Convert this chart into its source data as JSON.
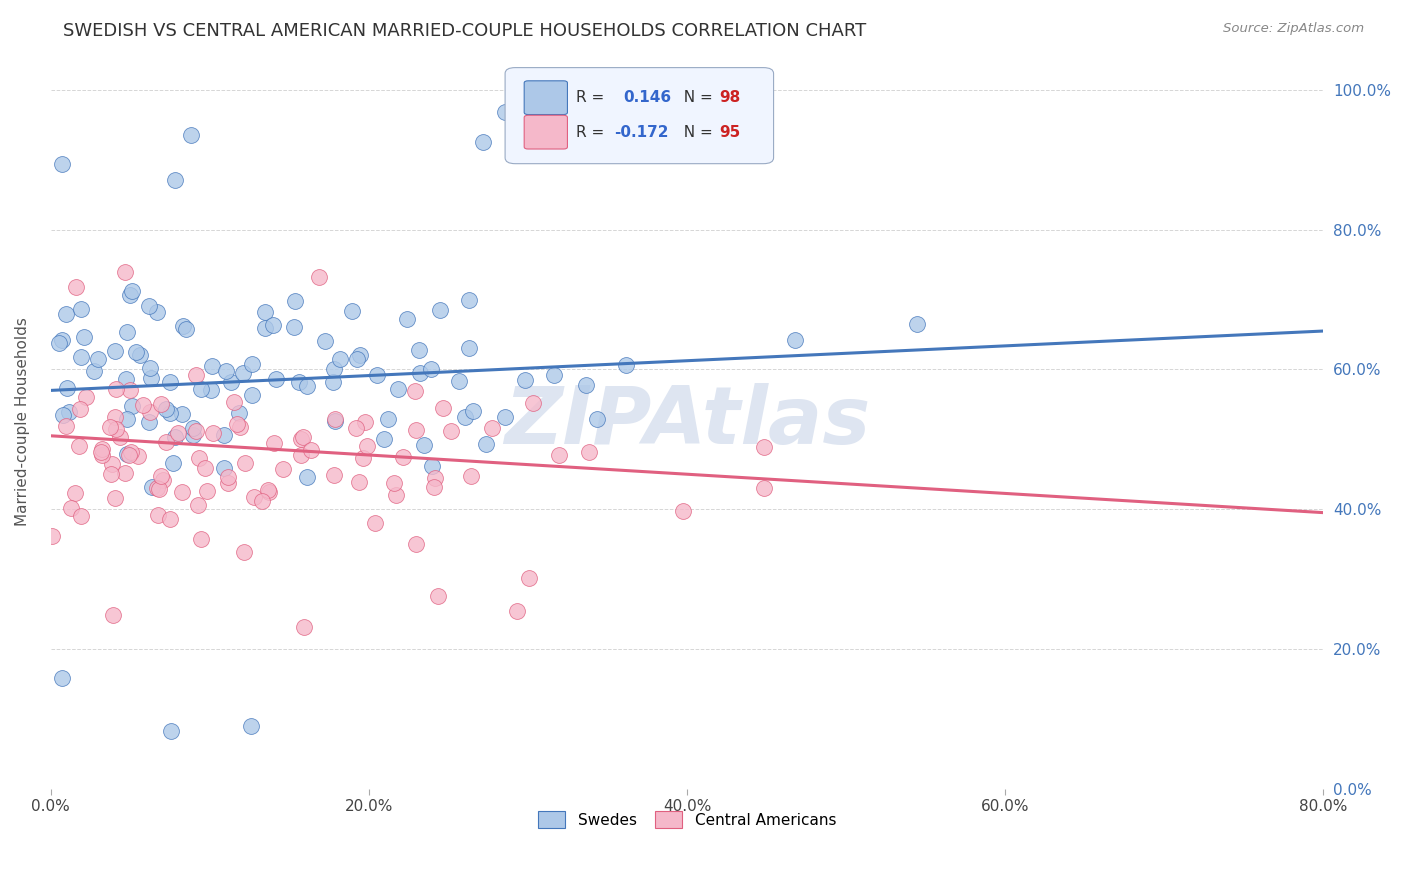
{
  "title": "SWEDISH VS CENTRAL AMERICAN MARRIED-COUPLE HOUSEHOLDS CORRELATION CHART",
  "source": "Source: ZipAtlas.com",
  "ylabel": "Married-couple Households",
  "xlabel_ticks": [
    "0.0%",
    "20.0%",
    "40.0%",
    "60.0%",
    "80.0%"
  ],
  "ylabel_ticks": [
    "0.0%",
    "20.0%",
    "40.0%",
    "60.0%",
    "80.0%",
    "100.0%"
  ],
  "xlim": [
    0.0,
    0.8
  ],
  "ylim": [
    0.0,
    1.05
  ],
  "swedes_R": 0.146,
  "swedes_N": 98,
  "central_R": -0.172,
  "central_N": 95,
  "swedes_color": "#adc8e8",
  "central_color": "#f5b8ca",
  "swedes_line_color": "#4477bb",
  "central_line_color": "#e06080",
  "background_color": "#ffffff",
  "grid_color": "#cccccc",
  "title_fontsize": 13,
  "axis_label_fontsize": 11,
  "tick_fontsize": 11,
  "watermark_text": "ZIPAtlas",
  "watermark_color": "#c8d4e8",
  "watermark_fontsize": 58,
  "swedes_line_y0": 0.57,
  "swedes_line_y1": 0.655,
  "central_line_y0": 0.505,
  "central_line_y1": 0.395
}
